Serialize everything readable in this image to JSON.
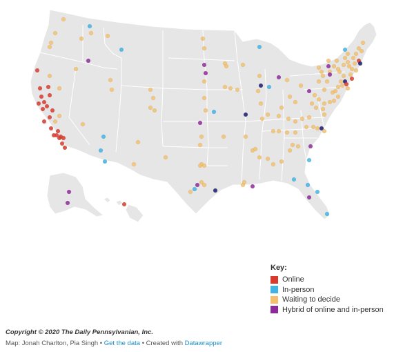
{
  "key": {
    "title": "Key:",
    "items": [
      {
        "label": "Online",
        "color": "#d93a2b"
      },
      {
        "label": "In-person",
        "color": "#3fb4e5"
      },
      {
        "label": "Waiting to decide",
        "color": "#f2c06e"
      },
      {
        "label": "Hybrid of online and in-person",
        "color": "#8e2a99"
      }
    ]
  },
  "footer": {
    "copyright": "Copyright © 2020 The Daily Pennsylvanian, Inc.",
    "credit_prefix": "Map: Jonah Charlton, Pia Singh",
    "sep1": "•",
    "get_data": "Get the data",
    "sep2": "• Created with",
    "datawrapper": "Datawrapper"
  },
  "map": {
    "base_color": "#e6e6e6",
    "border_color": "#ffffff"
  }
}
